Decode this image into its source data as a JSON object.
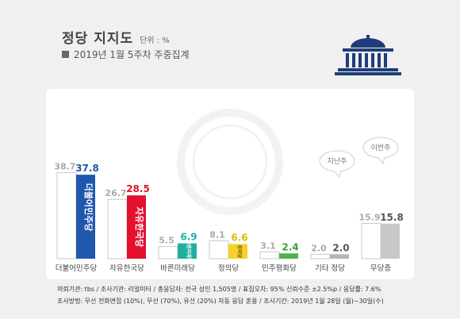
{
  "header": {
    "title": "정당 지지도",
    "unit": "단위 : %",
    "subtitle": "2019년 1월 5주차 주중집계"
  },
  "logo": {
    "icon": "national-assembly-icon",
    "color": "#1f3d7a"
  },
  "callouts": {
    "prev_label": "지난주",
    "curr_label": "이번주"
  },
  "chart_data": {
    "type": "bar",
    "categories": [
      "더불어민주당",
      "자유한국당",
      "바른미래당",
      "정의당",
      "민주평화당",
      "기타 정당",
      "무당층"
    ],
    "series": [
      {
        "name": "지난주",
        "values": [
          38.7,
          26.7,
          5.5,
          8.1,
          3.1,
          2.0,
          15.9
        ]
      },
      {
        "name": "이번주",
        "values": [
          37.8,
          28.5,
          6.9,
          6.6,
          2.4,
          2.0,
          15.8
        ]
      }
    ],
    "ylim": [
      0,
      40
    ],
    "colors": {
      "prev": "#ffffff",
      "prev_border": "#c8c8c8",
      "prev_label": "#aaaaaa",
      "current": [
        "#1f57ad",
        "#e3112c",
        "#1fb0a2",
        "#f6d12c",
        "#4eb348",
        "#b4b4b4",
        "#c8c8c8"
      ],
      "current_label": [
        "#1f57ad",
        "#e3112c",
        "#1fb0a2",
        "#e0b80c",
        "#3f9f36",
        "#555555",
        "#555555"
      ]
    },
    "bar_inner_labels": [
      "더불어민주당",
      "자유한국당",
      "바른미래당",
      "정의당",
      "",
      "",
      ""
    ]
  },
  "footer": {
    "line1": "의뢰기관: tbs / 조사기관: 리얼미터 / 총응답자: 전국 성인 1,505명 / 표집오차: 95% 신뢰수준 ±2.5%p / 응답률: 7.6%",
    "line2": "조사방법: 무선 전화면접 (10%), 무선 (70%), 유선 (20%) 자동 응답 혼용 / 조사기간: 2019년 1월 28일 (월)~30일(수)"
  }
}
